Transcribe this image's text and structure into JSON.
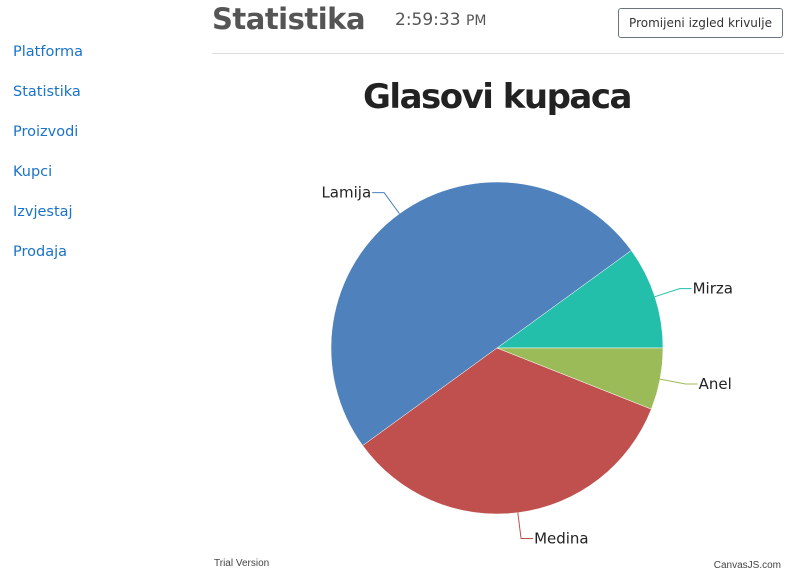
{
  "sidebar": {
    "items": [
      {
        "label": "Platforma"
      },
      {
        "label": "Statistika"
      },
      {
        "label": "Proizvodi"
      },
      {
        "label": "Kupci"
      },
      {
        "label": "Izvjestaj"
      },
      {
        "label": "Prodaja"
      }
    ]
  },
  "header": {
    "title": "Statistika",
    "time": "2:59:33",
    "ampm": "PM",
    "button_label": "Promijeni izgled krivulje"
  },
  "chart_data": {
    "type": "pie",
    "title": "Glasovi kupaca",
    "categories": [
      "Mirza",
      "Lamija",
      "Medina",
      "Anel"
    ],
    "values": [
      10,
      50,
      34,
      6
    ],
    "colors": [
      "#23bfaa",
      "#4f81bc",
      "#c0504e",
      "#9bbb58"
    ],
    "start_angle_deg": 0,
    "legend": "none",
    "watermarks": {
      "left": "Trial Version",
      "right": "CanvasJS.com"
    }
  }
}
